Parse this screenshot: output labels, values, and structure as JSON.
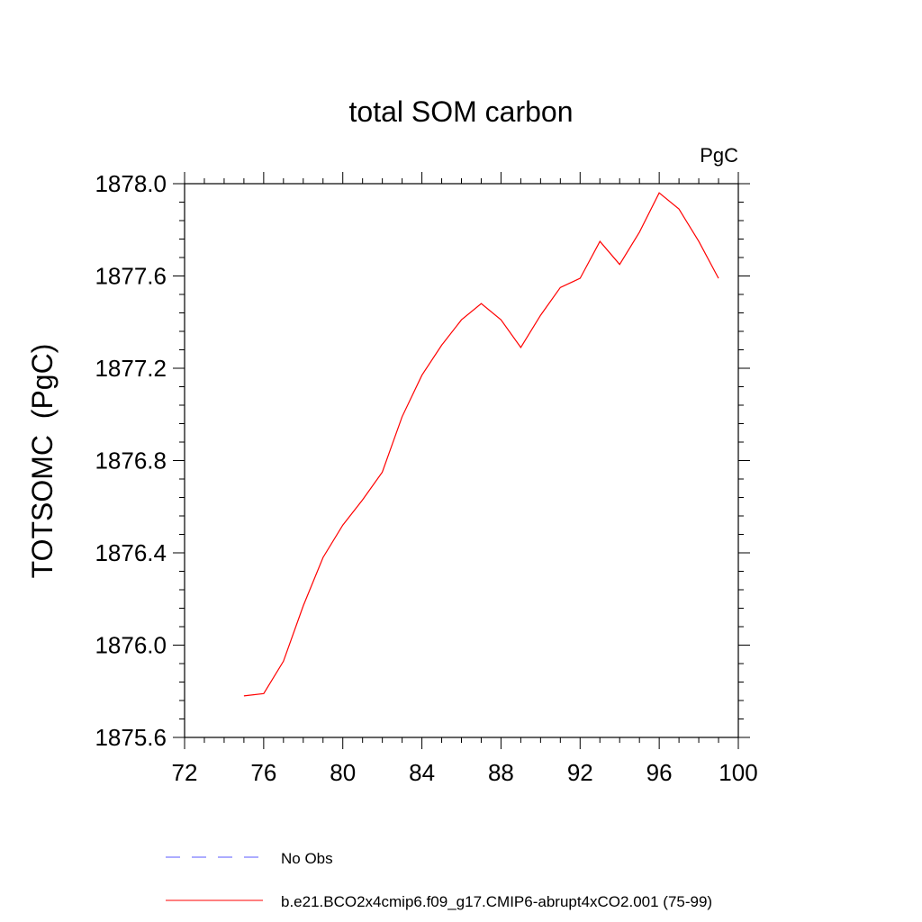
{
  "chart_data": {
    "type": "line",
    "title": "total SOM carbon",
    "units_label": "PgC",
    "ylabel": "TOTSOMC  (PgC)",
    "xlabel": "",
    "xlim": [
      72,
      100
    ],
    "ylim": [
      1875.6,
      1878.0
    ],
    "x_ticks": [
      "72",
      "76",
      "80",
      "84",
      "88",
      "92",
      "96",
      "100"
    ],
    "y_ticks": [
      "1875.6",
      "1876.0",
      "1876.4",
      "1876.8",
      "1877.2",
      "1877.6",
      "1878.0"
    ],
    "grid": false,
    "series": [
      {
        "name": "b.e21.BCO2x4cmip6.f09_g17.CMIP6-abrupt4xCO2.001 (75-99)",
        "color": "#ff0000",
        "style": "solid",
        "x": [
          75,
          76,
          77,
          78,
          79,
          80,
          81,
          82,
          83,
          84,
          85,
          86,
          87,
          88,
          89,
          90,
          91,
          92,
          93,
          94,
          95,
          96,
          97,
          98,
          99
        ],
        "values": [
          1875.78,
          1875.79,
          1875.93,
          1876.17,
          1876.38,
          1876.52,
          1876.63,
          1876.75,
          1876.99,
          1877.17,
          1877.3,
          1877.41,
          1877.48,
          1877.41,
          1877.29,
          1877.43,
          1877.55,
          1877.59,
          1877.75,
          1877.65,
          1877.79,
          1877.96,
          1877.89,
          1877.75,
          1877.59
        ]
      }
    ],
    "legend": [
      {
        "label": "No Obs",
        "color": "#5a5aff",
        "style": "dashed"
      },
      {
        "label": "b.e21.BCO2x4cmip6.f09_g17.CMIP6-abrupt4xCO2.001 (75-99)",
        "color": "#ff0000",
        "style": "solid"
      }
    ]
  }
}
